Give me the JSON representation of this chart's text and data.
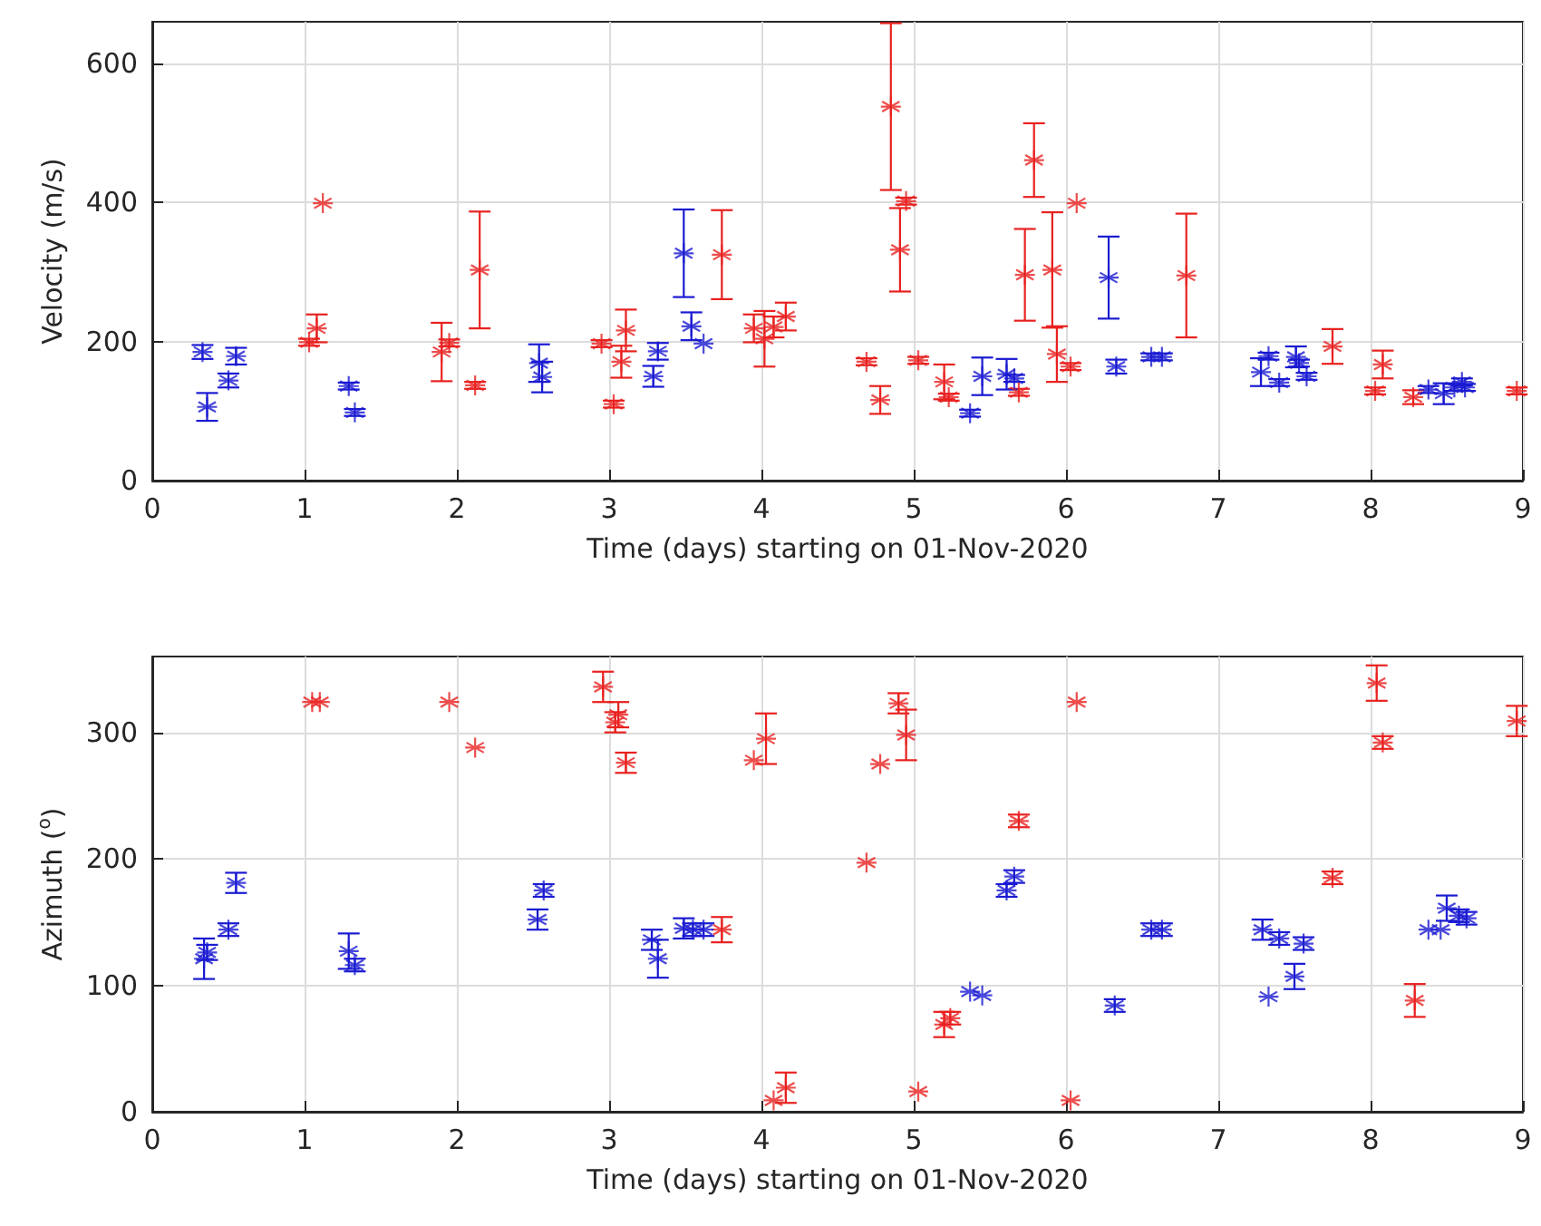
{
  "chart_data": [
    {
      "type": "scatter",
      "xlabel": "Time (days) starting on 01-Nov-2020",
      "ylabel": "Velocity (m/s)",
      "xlim": [
        0,
        9
      ],
      "xticks": [
        0,
        1,
        2,
        3,
        4,
        5,
        6,
        7,
        8,
        9
      ],
      "ylim": [
        0,
        660
      ],
      "yticks": [
        0,
        200,
        400,
        600
      ],
      "grid": true,
      "marker": "cross",
      "series": [
        {
          "color": "#e8211f",
          "x": [
            1.03,
            1.08,
            1.12,
            1.9,
            1.95,
            2.12,
            2.15,
            2.95,
            3.03,
            3.08,
            3.11,
            3.74,
            3.95,
            4.02,
            4.08,
            4.16,
            4.69,
            4.78,
            4.85,
            4.91,
            4.95,
            5.03,
            5.2,
            5.23,
            5.69,
            5.73,
            5.79,
            5.91,
            5.94,
            6.03,
            6.07,
            6.79,
            7.75,
            8.03,
            8.08,
            8.28,
            8.96
          ],
          "values": [
            199,
            219,
            399,
            185,
            198,
            137,
            303,
            197,
            110,
            171,
            216,
            325,
            219,
            204,
            221,
            236,
            171,
            116,
            538,
            332,
            402,
            173,
            142,
            120,
            127,
            296,
            461,
            303,
            182,
            164,
            399,
            295,
            193,
            129,
            167,
            120,
            129
          ],
          "errors": [
            5,
            20,
            null,
            42,
            5,
            5,
            84,
            5,
            5,
            23,
            30,
            64,
            20,
            40,
            15,
            20,
            5,
            20,
            120,
            60,
            5,
            5,
            25,
            5,
            5,
            66,
            53,
            83,
            40,
            5,
            null,
            89,
            25,
            5,
            20,
            10,
            5
          ]
        },
        {
          "color": "#1a1ad2",
          "x": [
            0.33,
            0.36,
            0.5,
            0.55,
            1.29,
            1.33,
            2.54,
            2.56,
            3.29,
            3.32,
            3.49,
            3.54,
            3.62,
            5.37,
            5.45,
            5.61,
            5.66,
            6.28,
            6.33,
            6.56,
            6.63,
            7.28,
            7.33,
            7.4,
            7.51,
            7.53,
            7.58,
            8.38,
            8.48,
            8.55,
            8.6,
            8.62
          ],
          "values": [
            185,
            106,
            144,
            179,
            136,
            98,
            169,
            149,
            150,
            186,
            327,
            222,
            197,
            97,
            150,
            153,
            147,
            292,
            164,
            178,
            178,
            156,
            179,
            141,
            178,
            169,
            150,
            131,
            125,
            134,
            142,
            134
          ],
          "errors": [
            10,
            20,
            10,
            12,
            5,
            5,
            27,
            22,
            15,
            12,
            63,
            20,
            null,
            5,
            27,
            22,
            5,
            59,
            10,
            5,
            5,
            20,
            5,
            5,
            15,
            5,
            5,
            5,
            15,
            5,
            5,
            5
          ]
        }
      ]
    },
    {
      "type": "scatter",
      "xlabel": "Time (days) starting on 01-Nov-2020",
      "ylabel": "Azimuth ($^{o}$)",
      "xlim": [
        0,
        9
      ],
      "xticks": [
        0,
        1,
        2,
        3,
        4,
        5,
        6,
        7,
        8,
        9
      ],
      "ylim": [
        0,
        360
      ],
      "yticks": [
        0,
        100,
        200,
        300
      ],
      "grid": true,
      "marker": "cross",
      "series": [
        {
          "color": "#e8211f",
          "x": [
            1.05,
            1.1,
            1.95,
            2.12,
            2.96,
            3.04,
            3.06,
            3.11,
            3.74,
            3.95,
            4.03,
            4.08,
            4.16,
            4.69,
            4.78,
            4.9,
            4.95,
            5.03,
            5.2,
            5.24,
            5.69,
            6.03,
            6.07,
            7.75,
            8.04,
            8.08,
            8.29,
            8.96
          ],
          "values": [
            324,
            324,
            324,
            288,
            336,
            308,
            314,
            276,
            144,
            278,
            295,
            9,
            19,
            197,
            275,
            323,
            298,
            16,
            69,
            74,
            230,
            9,
            324,
            185,
            339,
            292,
            88,
            309
          ],
          "errors": [
            null,
            null,
            null,
            null,
            12,
            8,
            10,
            8,
            10,
            null,
            20,
            null,
            12,
            null,
            null,
            8,
            20,
            null,
            10,
            5,
            5,
            null,
            null,
            5,
            14,
            5,
            13,
            12
          ]
        },
        {
          "color": "#1a1ad2",
          "x": [
            0.34,
            0.36,
            0.5,
            0.55,
            1.29,
            1.33,
            2.53,
            2.57,
            3.28,
            3.32,
            3.49,
            3.55,
            3.62,
            5.37,
            5.45,
            5.61,
            5.66,
            6.32,
            6.56,
            6.63,
            7.29,
            7.33,
            7.4,
            7.5,
            7.56,
            8.38,
            8.46,
            8.5,
            8.58,
            8.63
          ],
          "values": [
            121,
            126,
            144,
            181,
            127,
            116,
            152,
            175,
            136,
            121,
            145,
            144,
            144,
            95,
            92,
            175,
            186,
            84,
            144,
            144,
            144,
            91,
            137,
            107,
            133,
            144,
            144,
            161,
            155,
            153
          ],
          "errors": [
            16,
            6,
            5,
            8,
            14,
            5,
            8,
            5,
            8,
            15,
            8,
            5,
            5,
            null,
            null,
            5,
            5,
            5,
            5,
            5,
            8,
            null,
            5,
            10,
            5,
            null,
            null,
            10,
            5,
            5
          ]
        }
      ]
    }
  ]
}
